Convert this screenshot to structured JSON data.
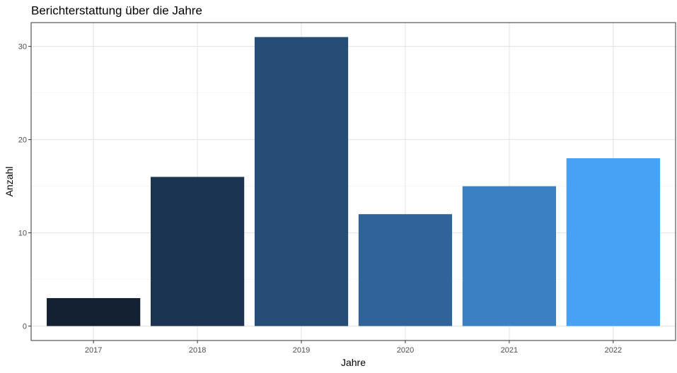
{
  "chart_data": {
    "type": "bar",
    "title": "Berichterstattung über die Jahre",
    "xlabel": "Jahre",
    "ylabel": "Anzahl",
    "categories": [
      "2017",
      "2018",
      "2019",
      "2020",
      "2021",
      "2022"
    ],
    "values": [
      3,
      16,
      31,
      12,
      15,
      18
    ],
    "colors": [
      "#132133",
      "#1b3452",
      "#254c75",
      "#2f6399",
      "#3c80c4",
      "#47a1f4"
    ],
    "ylim": [
      -1.55,
      32.55
    ],
    "yticks": [
      0,
      10,
      20,
      30
    ],
    "grid": true,
    "legend": "none"
  }
}
